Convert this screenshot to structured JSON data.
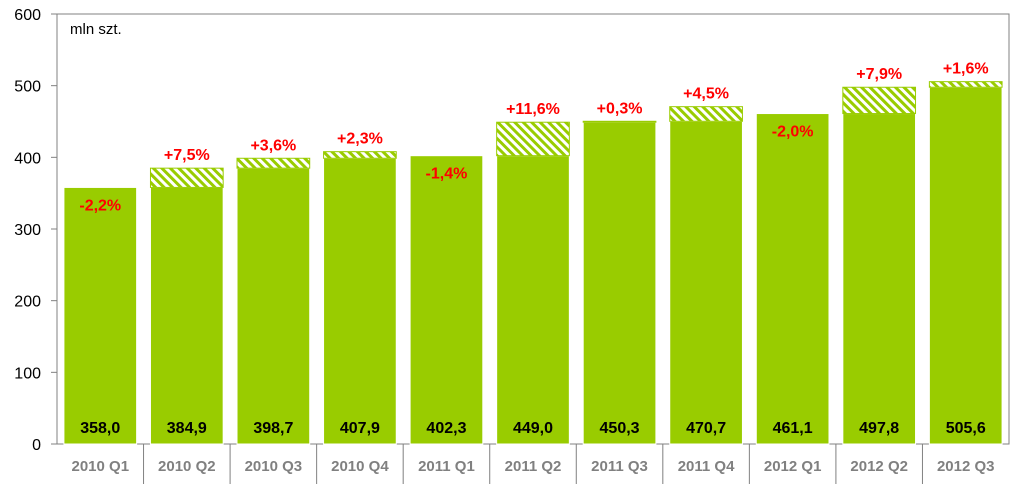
{
  "chart_data": {
    "type": "bar",
    "unit_label": "mln szt.",
    "categories": [
      "2010 Q1",
      "2010 Q2",
      "2010 Q3",
      "2010 Q4",
      "2011 Q1",
      "2011 Q2",
      "2011 Q3",
      "2011 Q4",
      "2012 Q1",
      "2012 Q2",
      "2012 Q3"
    ],
    "values": [
      358.0,
      384.9,
      398.7,
      407.9,
      402.3,
      449.0,
      450.3,
      470.7,
      461.1,
      497.8,
      505.6
    ],
    "value_labels": [
      "358,0",
      "384,9",
      "398,7",
      "407,9",
      "402,3",
      "449,0",
      "450,3",
      "470,7",
      "461,1",
      "497,8",
      "505,6"
    ],
    "changes": [
      "-2,2%",
      "+7,5%",
      "+3,6%",
      "+2,3%",
      "-1,4%",
      "+11,6%",
      "+0,3%",
      "+4,5%",
      "-2,0%",
      "+7,9%",
      "+1,6%"
    ],
    "ylim": [
      0,
      600
    ],
    "yticks": [
      0,
      100,
      200,
      300,
      400,
      500,
      600
    ],
    "colors": {
      "bar": "#99cc00",
      "bar_border": "#ffffff",
      "hatch": "#99cc00",
      "hatch_bg": "#ffffff",
      "change_text": "#ff0000",
      "axis": "#808080",
      "category_text": "#808080"
    }
  }
}
